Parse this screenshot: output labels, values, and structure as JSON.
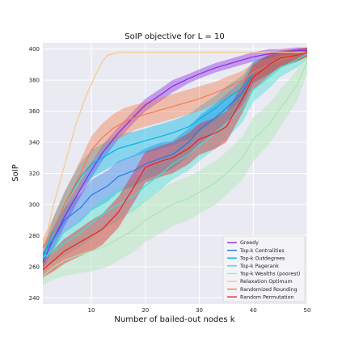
{
  "chart_data": {
    "type": "line",
    "title": "SoIP objective for L = 10",
    "xlabel": "Number of bailed-out nodes k",
    "ylabel": "SoIP",
    "xlim": [
      1,
      50
    ],
    "ylim": [
      236,
      404
    ],
    "xticks": [
      10,
      20,
      30,
      40,
      50
    ],
    "yticks": [
      240,
      260,
      280,
      300,
      320,
      340,
      360,
      380,
      400
    ],
    "grid": true,
    "legend_position": "bottom-right",
    "series": [
      {
        "name": "Greedy",
        "color": "#8a2be2",
        "x": [
          1,
          3,
          5,
          8,
          10,
          12,
          15,
          18,
          20,
          23,
          25,
          28,
          30,
          33,
          35,
          38,
          40,
          43,
          45,
          48,
          50
        ],
        "y": [
          263,
          278,
          292,
          310,
          322,
          333,
          346,
          357,
          364,
          371,
          376,
          381,
          384,
          388,
          390,
          393,
          395,
          397,
          398,
          399,
          399
        ],
        "band": [
          5,
          6,
          6,
          5,
          5,
          5,
          4,
          4,
          4,
          4,
          4,
          3,
          3,
          3,
          3,
          3,
          3,
          3,
          2,
          2,
          2
        ]
      },
      {
        "name": "Top-k Centralities",
        "color": "#1f7ce5",
        "x": [
          1,
          3,
          5,
          8,
          10,
          13,
          15,
          18,
          20,
          23,
          25,
          28,
          30,
          33,
          35,
          38,
          40,
          43,
          45,
          48,
          50
        ],
        "y": [
          268,
          278,
          290,
          298,
          306,
          312,
          318,
          322,
          326,
          330,
          332,
          340,
          348,
          356,
          362,
          372,
          385,
          390,
          393,
          396,
          398
        ],
        "band": [
          6,
          7,
          8,
          9,
          10,
          10,
          10,
          10,
          10,
          10,
          9,
          9,
          9,
          9,
          9,
          8,
          7,
          6,
          5,
          4,
          3
        ]
      },
      {
        "name": "Top-k Outdegrees",
        "color": "#00b4e6",
        "x": [
          1,
          3,
          5,
          8,
          10,
          13,
          15,
          18,
          20,
          23,
          25,
          28,
          30,
          33,
          35,
          38,
          40,
          43,
          45,
          48,
          50
        ],
        "y": [
          265,
          285,
          300,
          318,
          326,
          332,
          336,
          339,
          341,
          344,
          346,
          350,
          355,
          362,
          368,
          375,
          385,
          390,
          393,
          396,
          398
        ],
        "band": [
          6,
          7,
          8,
          9,
          9,
          9,
          9,
          8,
          8,
          8,
          8,
          8,
          8,
          8,
          8,
          8,
          7,
          6,
          5,
          4,
          3
        ]
      },
      {
        "name": "Top-k Pagerank",
        "color": "#40e0d0",
        "x": [
          1,
          3,
          5,
          8,
          10,
          13,
          15,
          18,
          20,
          23,
          25,
          28,
          30,
          33,
          35,
          38,
          40,
          43,
          45,
          48,
          50
        ],
        "y": [
          266,
          270,
          275,
          282,
          288,
          296,
          300,
          306,
          312,
          320,
          326,
          332,
          338,
          346,
          352,
          362,
          374,
          382,
          388,
          393,
          397
        ],
        "band": [
          6,
          7,
          8,
          9,
          10,
          10,
          10,
          10,
          10,
          10,
          10,
          10,
          10,
          10,
          10,
          9,
          8,
          7,
          6,
          5,
          4
        ]
      },
      {
        "name": "Top-k Wealths (poorest)",
        "color": "#a8e6b0",
        "x": [
          1,
          3,
          5,
          8,
          10,
          13,
          15,
          18,
          20,
          23,
          25,
          28,
          30,
          33,
          35,
          38,
          40,
          43,
          45,
          48,
          50
        ],
        "y": [
          254,
          260,
          264,
          268,
          270,
          274,
          278,
          284,
          290,
          296,
          300,
          304,
          308,
          314,
          320,
          330,
          342,
          352,
          362,
          376,
          392
        ],
        "band": [
          6,
          8,
          10,
          12,
          13,
          14,
          14,
          14,
          14,
          14,
          14,
          14,
          14,
          14,
          14,
          14,
          14,
          13,
          12,
          10,
          8
        ]
      },
      {
        "name": "Relaxation Optimum",
        "color": "#f5c98a",
        "x": [
          1,
          3,
          5,
          7,
          9,
          11,
          12,
          13,
          14,
          15,
          16,
          18,
          20,
          25,
          30,
          35,
          40,
          45,
          50
        ],
        "y": [
          270,
          300,
          325,
          350,
          370,
          385,
          392,
          396,
          397,
          398,
          398,
          398,
          398,
          398,
          398,
          398,
          398,
          398,
          398
        ],
        "band": [
          0,
          0,
          0,
          0,
          0,
          0,
          0,
          0,
          0,
          0,
          0,
          0,
          0,
          0,
          0,
          0,
          0,
          0,
          0
        ]
      },
      {
        "name": "Randomized Rounding",
        "color": "#f27c4f",
        "x": [
          1,
          3,
          5,
          8,
          10,
          12,
          14,
          16,
          18,
          20,
          23,
          25,
          28,
          30,
          33,
          35,
          38,
          40,
          43,
          45,
          48,
          50
        ],
        "y": [
          272,
          285,
          300,
          320,
          335,
          343,
          349,
          353,
          356,
          358,
          361,
          363,
          366,
          368,
          372,
          375,
          380,
          385,
          390,
          393,
          396,
          398
        ],
        "band": [
          6,
          7,
          8,
          9,
          9,
          9,
          9,
          9,
          8,
          8,
          8,
          8,
          8,
          8,
          7,
          7,
          6,
          6,
          5,
          5,
          4,
          3
        ]
      },
      {
        "name": "Random Permutation",
        "color": "#e8202a",
        "x": [
          1,
          3,
          5,
          8,
          10,
          12,
          15,
          18,
          20,
          23,
          25,
          28,
          30,
          33,
          35,
          38,
          40,
          43,
          45,
          48,
          50
        ],
        "y": [
          258,
          264,
          270,
          276,
          280,
          284,
          295,
          312,
          324,
          328,
          330,
          336,
          342,
          346,
          350,
          368,
          382,
          390,
          394,
          396,
          398
        ],
        "band": [
          5,
          7,
          8,
          9,
          10,
          10,
          10,
          10,
          10,
          10,
          10,
          10,
          10,
          10,
          10,
          9,
          8,
          7,
          5,
          4,
          3
        ]
      }
    ]
  }
}
